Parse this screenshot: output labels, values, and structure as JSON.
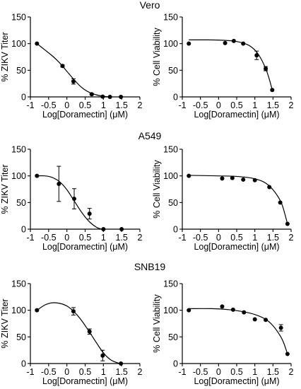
{
  "figure": {
    "row_titles": [
      "Vero",
      "A549",
      "SNB19"
    ]
  },
  "chart_data": [
    {
      "type": "scatter",
      "title": "Vero",
      "xlabel": "Log[Doramectin] (μM)",
      "ylabel": "% ZIKV Titer",
      "xlim": [
        -1,
        2
      ],
      "ylim": [
        0,
        150
      ],
      "xticks": [
        "-1",
        "-0.5",
        "0",
        "0.5",
        "1",
        "1.5",
        "2"
      ],
      "yticks": [
        "0",
        "50",
        "100",
        "150"
      ],
      "grid": false,
      "series": [
        {
          "x": [
            -0.82,
            -0.12,
            0.18,
            0.68,
            0.98,
            1.18,
            1.48
          ],
          "y": [
            100,
            58,
            29,
            5,
            0.5,
            0,
            0
          ],
          "err": [
            0,
            2,
            5,
            1,
            0,
            0,
            0
          ],
          "fit_x": [
            -0.82,
            -0.6,
            -0.4,
            -0.2,
            0,
            0.2,
            0.4,
            0.6,
            0.8,
            1.0,
            1.18
          ],
          "fit_y": [
            100,
            88,
            77,
            64,
            48,
            32,
            18,
            9,
            4,
            1.2,
            0
          ]
        }
      ]
    },
    {
      "type": "scatter",
      "title": "Vero",
      "xlabel": "Log[Doramectin] (μM)",
      "ylabel": "% Cell Viability",
      "xlim": [
        -1,
        2
      ],
      "ylim": [
        0,
        150
      ],
      "xticks": [
        "-1",
        "-0.5",
        "0",
        "0.5",
        "1",
        "1.5",
        "2"
      ],
      "yticks": [
        "0",
        "50",
        "100",
        "150"
      ],
      "grid": false,
      "series": [
        {
          "x": [
            -0.82,
            0.18,
            0.42,
            0.68,
            1.05,
            1.3,
            1.48
          ],
          "y": [
            100,
            101,
            105,
            100,
            78,
            53,
            13
          ],
          "err": [
            0,
            0,
            0,
            0,
            8,
            4,
            0
          ],
          "fit_x": [
            -0.82,
            -0.3,
            0.2,
            0.5,
            0.8,
            1.0,
            1.15,
            1.3,
            1.4,
            1.48
          ],
          "fit_y": [
            107,
            107,
            106,
            104,
            98,
            88,
            74,
            53,
            33,
            13
          ]
        }
      ]
    },
    {
      "type": "scatter",
      "title": "A549",
      "xlabel": "Log[Doramectin] (μM)",
      "ylabel": "% ZIKV Titer",
      "xlim": [
        -1,
        2
      ],
      "ylim": [
        0,
        150
      ],
      "xticks": [
        "-1",
        "-0.5",
        "0",
        "0.5",
        "1",
        "1.5",
        "2"
      ],
      "yticks": [
        "0",
        "50",
        "100",
        "150"
      ],
      "grid": false,
      "series": [
        {
          "x": [
            -0.82,
            -0.22,
            0.2,
            0.62,
            1.0,
            1.5
          ],
          "y": [
            100,
            85,
            57,
            29,
            0,
            0
          ],
          "err": [
            0,
            33,
            19,
            10,
            0,
            0
          ],
          "fit_x": [
            -0.82,
            -0.6,
            -0.4,
            -0.2,
            0,
            0.2,
            0.4,
            0.6,
            0.8,
            0.95
          ],
          "fit_y": [
            100,
            100,
            97,
            89,
            74,
            53,
            32,
            15,
            4,
            0
          ]
        }
      ]
    },
    {
      "type": "scatter",
      "title": "A549",
      "xlabel": "Log[Doramectin] (μM)",
      "ylabel": "% Cell Viability",
      "xlim": [
        -1,
        2
      ],
      "ylim": [
        0,
        150
      ],
      "xticks": [
        "-1",
        "-0.5",
        "0",
        "0.5",
        "1",
        "1.5",
        "2"
      ],
      "yticks": [
        "0",
        "50",
        "100",
        "150"
      ],
      "grid": false,
      "series": [
        {
          "x": [
            -0.82,
            0.1,
            0.38,
            0.68,
            1.0,
            1.4,
            1.7,
            1.9
          ],
          "y": [
            100,
            95,
            96,
            93,
            92,
            79,
            50,
            10
          ],
          "err": [
            0,
            0,
            0,
            0,
            0,
            0,
            0,
            0
          ],
          "fit_x": [
            -0.82,
            0,
            0.5,
            0.9,
            1.2,
            1.4,
            1.6,
            1.75,
            1.9
          ],
          "fit_y": [
            101,
            100,
            99,
            96,
            90,
            81,
            65,
            46,
            10
          ]
        }
      ]
    },
    {
      "type": "scatter",
      "title": "SNB19",
      "xlabel": "Log[Doramectin] (μM)",
      "ylabel": "% ZIKV Titer",
      "xlim": [
        -1,
        2
      ],
      "ylim": [
        0,
        150
      ],
      "xticks": [
        "-1",
        "-0.5",
        "0",
        "0.5",
        "1",
        "1.5",
        "2"
      ],
      "yticks": [
        "0",
        "50",
        "100",
        "150"
      ],
      "grid": false,
      "series": [
        {
          "x": [
            -0.82,
            0.18,
            0.62,
            0.98,
            1.48
          ],
          "y": [
            100,
            98,
            60,
            15,
            0
          ],
          "err": [
            0,
            7,
            5,
            10,
            0
          ],
          "fit_x": [
            -0.82,
            -0.6,
            -0.4,
            -0.2,
            0,
            0.2,
            0.4,
            0.6,
            0.8,
            1.0,
            1.2,
            1.4,
            1.48
          ],
          "fit_y": [
            100,
            110,
            114,
            113,
            108,
            97,
            81,
            61,
            40,
            20,
            7,
            1,
            0
          ]
        }
      ]
    },
    {
      "type": "scatter",
      "title": "SNB19",
      "xlabel": "Log[Doramectin] (μM)",
      "ylabel": "% Cell Viability",
      "xlim": [
        -1,
        2
      ],
      "ylim": [
        0,
        150
      ],
      "xticks": [
        "-1",
        "-0.5",
        "0",
        "0.5",
        "1",
        "1.5",
        "2"
      ],
      "yticks": [
        "0",
        "50",
        "100",
        "150"
      ],
      "grid": false,
      "series": [
        {
          "x": [
            -0.82,
            0.1,
            0.4,
            0.7,
            1.0,
            1.3,
            1.72,
            1.9
          ],
          "y": [
            100,
            107,
            101,
            96,
            83,
            82,
            67,
            18
          ],
          "err": [
            0,
            0,
            0,
            0,
            0,
            0,
            6,
            0
          ],
          "fit_x": [
            -0.82,
            -0.2,
            0.3,
            0.7,
            1.0,
            1.3,
            1.5,
            1.7,
            1.8,
            1.9
          ],
          "fit_y": [
            103,
            103,
            101,
            97,
            92,
            83,
            71,
            52,
            38,
            18
          ]
        }
      ]
    }
  ]
}
